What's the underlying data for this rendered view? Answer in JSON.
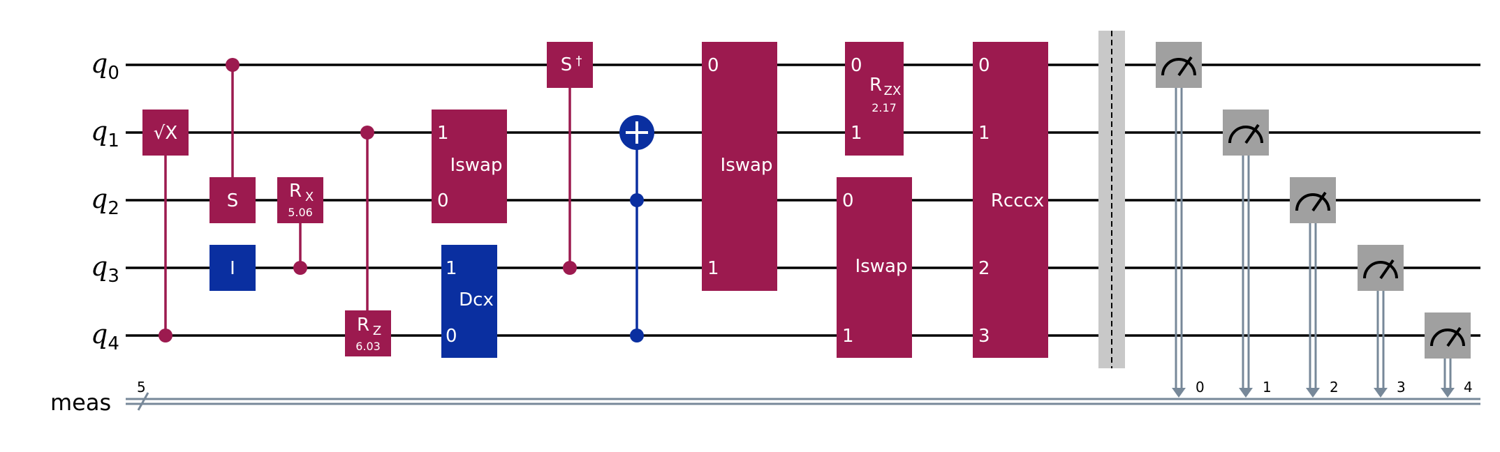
{
  "colors": {
    "magenta": "#9c1a4f",
    "blue": "#0a2fa0",
    "gray": "#a0a0a0",
    "barrier": "#c8c8c8",
    "classical": "#778899"
  },
  "qubits": [
    {
      "name": "q",
      "index": "0"
    },
    {
      "name": "q",
      "index": "1"
    },
    {
      "name": "q",
      "index": "2"
    },
    {
      "name": "q",
      "index": "3"
    },
    {
      "name": "q",
      "index": "4"
    }
  ],
  "classical": {
    "label": "meas",
    "width": "5",
    "indices": [
      "0",
      "1",
      "2",
      "3",
      "4"
    ]
  },
  "gates": {
    "sx": "√X",
    "s": "S",
    "id": "I",
    "rx": {
      "label": "R",
      "sub": "X",
      "param": "5.06"
    },
    "rz": {
      "label": "R",
      "sub": "Z",
      "param": "6.03"
    },
    "iswap": "Iswap",
    "dcx": "Dcx",
    "sdg": {
      "label": "S",
      "sup": "†"
    },
    "rzx": {
      "label": "R",
      "sub": "ZX",
      "param": "2.17"
    },
    "rcccx": "Rcccx",
    "ports": [
      "0",
      "1",
      "2",
      "3"
    ]
  }
}
